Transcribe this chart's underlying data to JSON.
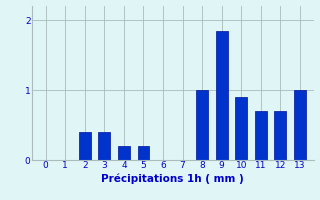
{
  "categories": [
    0,
    1,
    2,
    3,
    4,
    5,
    6,
    7,
    8,
    9,
    10,
    11,
    12,
    13
  ],
  "values": [
    0,
    0,
    0.4,
    0.4,
    0.2,
    0.2,
    0,
    0,
    1.0,
    1.85,
    0.9,
    0.7,
    0.7,
    1.0
  ],
  "bar_color": "#0033cc",
  "background_color": "#e0f5f5",
  "grid_color": "#aabcbc",
  "xlabel": "Précipitations 1h ( mm )",
  "xlabel_color": "#0000cc",
  "tick_color": "#0000cc",
  "ylim": [
    0,
    2.2
  ],
  "yticks": [
    0,
    1,
    2
  ],
  "bar_width": 0.6,
  "label_fontsize": 7.5,
  "tick_fontsize": 6.5
}
